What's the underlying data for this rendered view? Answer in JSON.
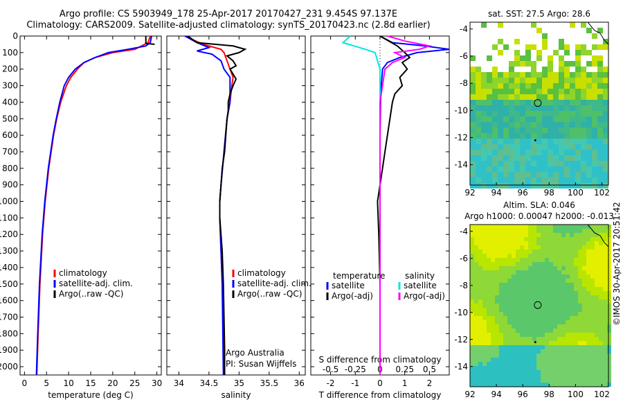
{
  "titles": {
    "line1": "Argo profile: CS 5903949_178 25-Apr-2017 20170427_231 9.454S 97.137E",
    "line2": "Climatology: CARS2009. Satellite-adjusted climatology: synTS_20170423.nc (2.8d earlier)"
  },
  "stamp": "©IMOS 30-Apr-2017 20:51:42",
  "colors": {
    "climatology": "#ff0000",
    "satellite": "#0000ff",
    "argo": "#000000",
    "sal_satellite": "#00e5e5",
    "sal_argo": "#ff00ff"
  },
  "chart_data": [
    {
      "type": "line",
      "panel": "temperature",
      "xlabel": "temperature (deg C)",
      "xlim": [
        -1,
        31
      ],
      "xticks": [
        0,
        5,
        10,
        15,
        20,
        25,
        30
      ],
      "ylim": [
        0,
        2050
      ],
      "yticks": [
        0,
        100,
        200,
        300,
        400,
        500,
        600,
        700,
        800,
        900,
        1000,
        1100,
        1200,
        1300,
        1400,
        1500,
        1600,
        1700,
        1800,
        1900,
        2000
      ],
      "legend": [
        "climatology",
        "satellite-adj. clim.",
        "Argo(..raw -QC)"
      ],
      "series": [
        {
          "name": "climatology",
          "color": "#ff0000",
          "depth": [
            0,
            40,
            80,
            100,
            130,
            160,
            200,
            250,
            300,
            400,
            500,
            600,
            800,
            1000,
            1200,
            1500,
            1800,
            2050
          ],
          "values": [
            28.5,
            28,
            25,
            20,
            16,
            13.5,
            12,
            10.5,
            9.5,
            8.2,
            7.3,
            6.6,
            5.5,
            4.7,
            4.1,
            3.5,
            3.1,
            2.8
          ]
        },
        {
          "name": "satellite-adj. clim.",
          "color": "#0000ff",
          "depth": [
            0,
            40,
            60,
            80,
            100,
            130,
            160,
            200,
            250,
            300,
            400,
            500,
            600,
            800,
            1000,
            1200,
            1500,
            1800,
            2050
          ],
          "values": [
            28.8,
            28.5,
            27.5,
            23.5,
            19,
            16,
            13.5,
            11.5,
            10,
            9,
            8,
            7.2,
            6.5,
            5.4,
            4.6,
            4.0,
            3.4,
            3.0,
            2.7
          ]
        },
        {
          "name": "Argo(..raw -QC)",
          "color": "#000000",
          "depth": [
            0,
            5,
            45,
            50
          ],
          "values": [
            27.5,
            27.5,
            27.5,
            29.5
          ]
        }
      ]
    },
    {
      "type": "line",
      "panel": "salinity",
      "xlabel": "salinity",
      "xlim": [
        33.8,
        36.1
      ],
      "xticks": [
        34,
        34.5,
        35,
        35.5,
        36
      ],
      "ylim": [
        0,
        2050
      ],
      "legend": [
        "climatology",
        "satellite-adj. clim.",
        "Argo(..raw -QC)"
      ],
      "annotations": [
        "Argo Australia",
        "PI: Susan Wijffels"
      ],
      "series": [
        {
          "name": "climatology",
          "color": "#ff0000",
          "depth": [
            0,
            50,
            80,
            100,
            150,
            200,
            250,
            300,
            400,
            500,
            700,
            900,
            1000,
            1100,
            1300,
            1500,
            1800,
            2050
          ],
          "values": [
            34.1,
            34.4,
            34.7,
            34.75,
            34.8,
            34.85,
            34.9,
            34.88,
            34.85,
            34.8,
            34.75,
            34.7,
            34.68,
            34.68,
            34.7,
            34.72,
            34.74,
            34.75
          ]
        },
        {
          "name": "satellite-adj. clim.",
          "color": "#0000ff",
          "depth": [
            0,
            40,
            70,
            90,
            110,
            150,
            200,
            250,
            300,
            400,
            500,
            700,
            900,
            1000,
            1100,
            1300,
            1500,
            1800,
            2050
          ],
          "values": [
            34.1,
            34.3,
            34.5,
            34.3,
            34.55,
            34.7,
            34.75,
            34.85,
            34.85,
            34.85,
            34.8,
            34.75,
            34.7,
            34.68,
            34.68,
            34.7,
            34.72,
            34.73,
            34.74
          ]
        },
        {
          "name": "Argo(..raw -QC)",
          "color": "#000000",
          "depth": [
            0,
            40,
            60,
            80,
            100,
            120,
            150,
            180,
            200,
            230,
            260,
            300,
            350,
            400,
            450,
            500,
            600,
            700,
            800,
            900,
            1000,
            1100,
            1300,
            1500,
            1700,
            1900,
            2050
          ],
          "values": [
            34.15,
            34.3,
            34.9,
            35.1,
            35.0,
            34.8,
            34.9,
            34.95,
            34.85,
            34.9,
            34.95,
            34.9,
            34.85,
            34.82,
            34.82,
            34.8,
            34.78,
            34.76,
            34.72,
            34.7,
            34.68,
            34.68,
            34.72,
            34.74,
            34.75,
            34.76,
            34.76
          ]
        }
      ]
    },
    {
      "type": "line",
      "panel": "difference",
      "xlabel": "T difference from climatology",
      "xlabel_top": "S difference from climatology",
      "xlim": [
        -2.8,
        2.8
      ],
      "xticks": [
        -2,
        -1,
        0,
        1,
        2
      ],
      "xticks_top": [
        -0.5,
        -0.25,
        0,
        0.25,
        0.5
      ],
      "ylim": [
        0,
        2050
      ],
      "legend_left_title": "temperature",
      "legend_right_title": "salinity",
      "legend": [
        "satellite",
        "Argo(-adj)",
        "satellite",
        "Argo(-adj)"
      ],
      "series": [
        {
          "name": "temperature satellite",
          "color": "#0000ff",
          "depth": [
            0,
            40,
            60,
            80,
            100,
            130,
            160,
            200,
            300,
            400,
            600,
            1000,
            1500,
            2050
          ],
          "values": [
            0,
            0.5,
            1.8,
            2.8,
            1.5,
            0.8,
            0.3,
            0.1,
            0.05,
            0.02,
            0,
            0,
            0,
            0
          ]
        },
        {
          "name": "temperature Argo(-adj)",
          "color": "#000000",
          "depth": [
            0,
            60,
            100,
            130,
            160,
            200,
            250,
            300,
            350,
            400,
            500,
            600,
            700,
            800,
            900,
            1000,
            1200,
            1500,
            1800,
            2050
          ],
          "values": [
            0,
            0.7,
            1.0,
            1.2,
            0.9,
            1.1,
            0.8,
            0.9,
            0.6,
            0.5,
            0.4,
            0.3,
            0.2,
            0.1,
            0.0,
            -0.1,
            -0.05,
            0,
            0,
            0
          ]
        },
        {
          "name": "salinity satellite",
          "color": "#00e5e5",
          "depth": [
            0,
            40,
            80,
            100,
            150,
            200,
            300,
            400,
            600,
            1000,
            1500,
            2050
          ],
          "values": [
            -1.2,
            -1.5,
            -0.6,
            -0.2,
            -0.1,
            0,
            0,
            0,
            0,
            0,
            0,
            0
          ]
        },
        {
          "name": "salinity Argo(-adj)",
          "color": "#ff00ff",
          "depth": [
            0,
            30,
            60,
            80,
            100,
            130,
            160,
            200,
            300,
            400,
            600,
            1000,
            1500,
            2050
          ],
          "values": [
            0.3,
            1.0,
            2.0,
            1.6,
            0.6,
            1.0,
            0.5,
            0.2,
            0.1,
            0,
            0,
            0,
            0,
            0
          ]
        }
      ]
    },
    {
      "type": "heatmap",
      "panel": "sat-sst-map",
      "title": "sat. SST: 27.5 Argo: 28.6",
      "xlim": [
        92,
        102.5
      ],
      "ylim": [
        -15.5,
        -3.5
      ],
      "xticks": [
        92,
        94,
        96,
        98,
        100,
        102
      ],
      "yticks": [
        -4,
        -6,
        -8,
        -10,
        -12,
        -14
      ],
      "marker": {
        "lon": 97.137,
        "lat": -9.454
      }
    },
    {
      "type": "heatmap",
      "panel": "sla-map",
      "title": "Altim. SLA: 0.046",
      "subtitle": "Argo h1000: 0.00047 h2000: -0.013",
      "xlim": [
        92,
        102.5
      ],
      "ylim": [
        -15.5,
        -3.5
      ],
      "xticks": [
        92,
        94,
        96,
        98,
        100,
        102
      ],
      "yticks": [
        -4,
        -6,
        -8,
        -10,
        -12,
        -14
      ],
      "marker": {
        "lon": 97.137,
        "lat": -9.454
      }
    }
  ]
}
